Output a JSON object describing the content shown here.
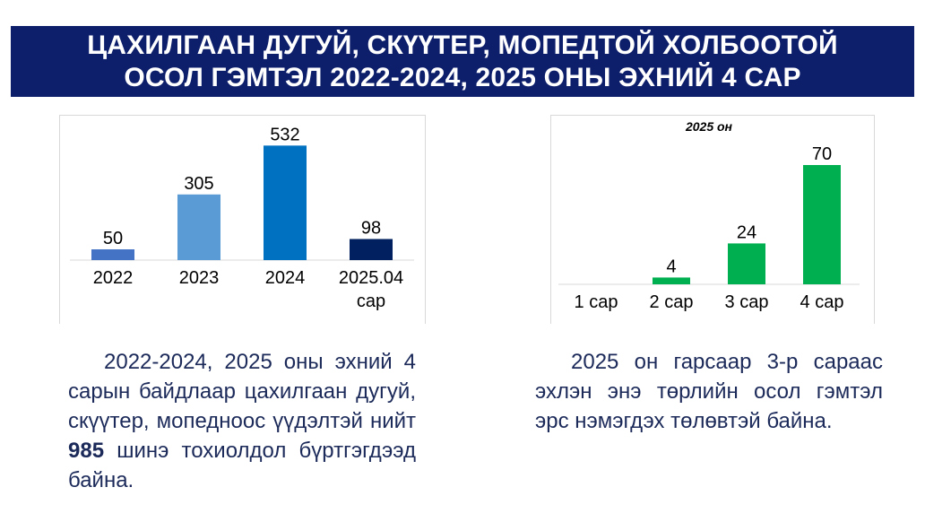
{
  "banner": {
    "line1": "ЦАХИЛГААН ДУГУЙ, СКҮҮТЕР, МОПЕДТОЙ ХОЛБООТОЙ",
    "line2": "ОСОЛ ГЭМТЭЛ 2022-2024, 2025 ОНЫ ЭХНИЙ 4 САР"
  },
  "chart_data": [
    {
      "type": "bar",
      "title": "",
      "categories": [
        "2022",
        "2023",
        "2024",
        "2025.04 сар"
      ],
      "category_lines": [
        [
          "2022"
        ],
        [
          "2023"
        ],
        [
          "2024"
        ],
        [
          "2025.04",
          "сар"
        ]
      ],
      "values": [
        50,
        305,
        532,
        98
      ],
      "colors": [
        "#4472c4",
        "#5b9bd5",
        "#0070c0",
        "#002060"
      ],
      "ylim": [
        0,
        600
      ],
      "grid": false,
      "xlabel": "",
      "ylabel": ""
    },
    {
      "type": "bar",
      "title": "2025 он",
      "categories": [
        "1 сар",
        "2 сар",
        "3 сар",
        "4 сар"
      ],
      "category_lines": [
        [
          "1 сар"
        ],
        [
          "2 сар"
        ],
        [
          "3 сар"
        ],
        [
          "4 сар"
        ]
      ],
      "values": [
        0,
        4,
        24,
        70
      ],
      "value_labels": [
        "",
        "4",
        "24",
        "70"
      ],
      "colors": [
        "#00b050",
        "#00b050",
        "#00b050",
        "#00b050"
      ],
      "ylim": [
        0,
        80
      ],
      "grid": false,
      "xlabel": "",
      "ylabel": ""
    }
  ],
  "text": {
    "left_before": "2022-2024, 2025 оны эхний 4 сарын байдлаар цахилгаан дугуй, скүүтер, мопедноос үүдэлтэй нийт",
    "left_bold": "985",
    "left_after": "шинэ тохиолдол бүртгэгдээд байна.",
    "right": "2025 он гарсаар 3-р сараас эхлэн энэ төрлийн осол гэмтэл эрс нэмэгдэх төлөвтэй байна."
  }
}
